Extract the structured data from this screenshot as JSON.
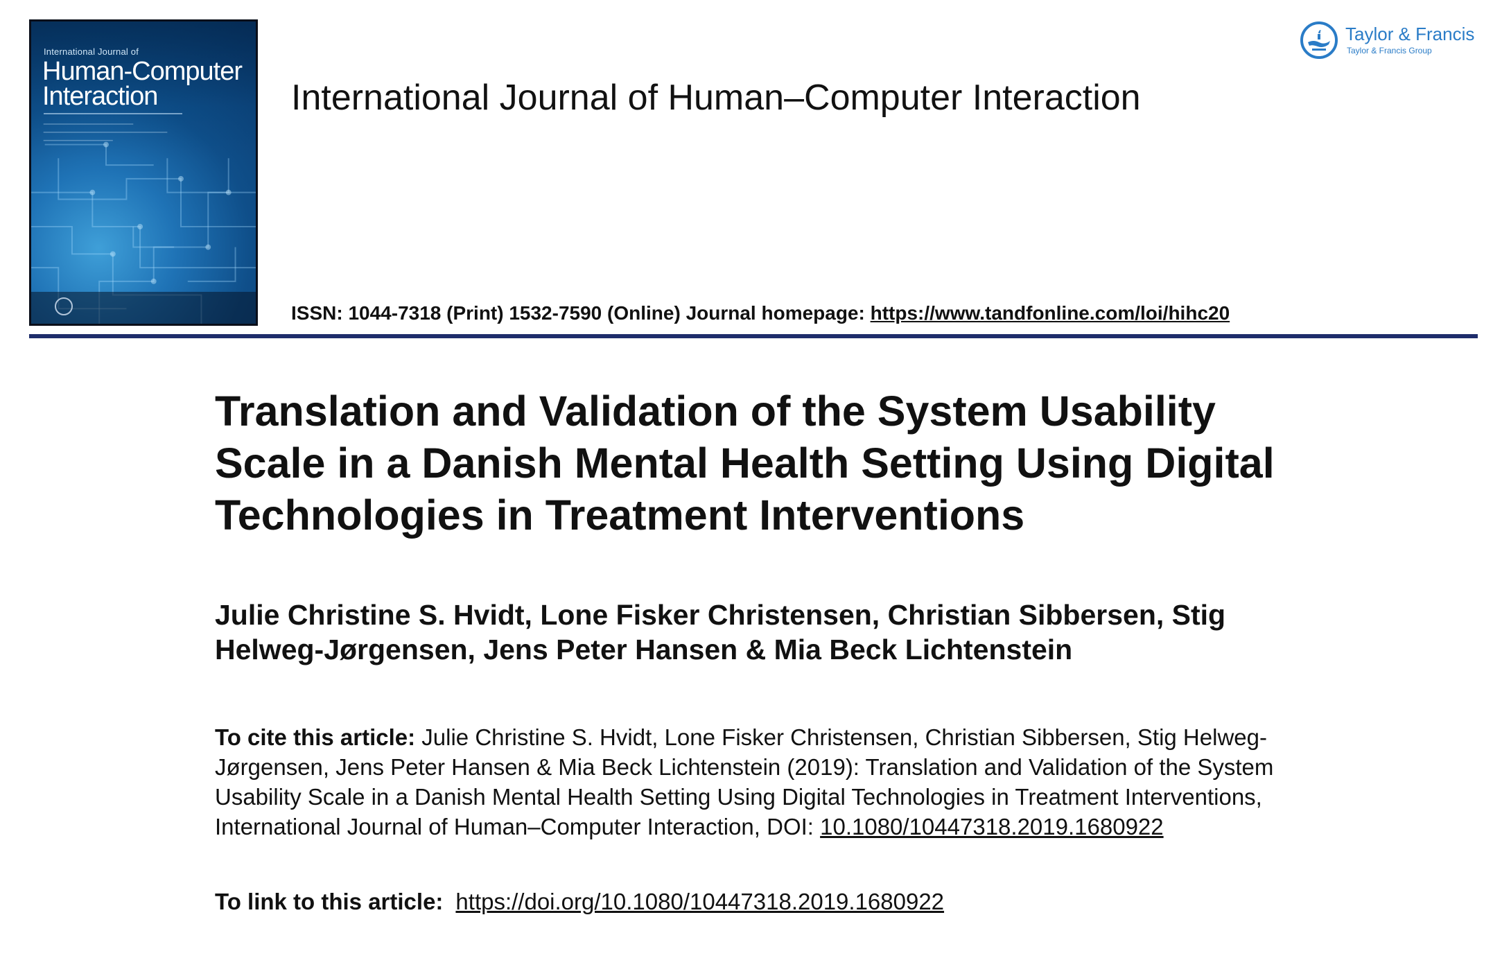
{
  "header": {
    "cover": {
      "kicker": "International Journal of",
      "title": "Human-Computer Interaction"
    },
    "journal_title": "International Journal of Human–Computer Interaction",
    "publisher": {
      "name": "Taylor & Francis",
      "group": "Taylor & Francis Group"
    },
    "issn_text": "ISSN: 1044-7318 (Print) 1532-7590 (Online) Journal homepage: ",
    "homepage_url": "https://www.tandfonline.com/loi/hihc20"
  },
  "article": {
    "title": "Translation and Validation of the System Usability Scale in a Danish Mental Health Setting Using Digital Technologies in Treatment Interventions",
    "authors": "Julie Christine S. Hvidt, Lone Fisker Christensen, Christian Sibbersen, Stig Helweg-Jørgensen, Jens Peter Hansen & Mia Beck Lichtenstein",
    "cite_label": "To cite this article:",
    "cite_text": " Julie Christine S. Hvidt, Lone Fisker Christensen, Christian Sibbersen, Stig Helweg-Jørgensen, Jens Peter Hansen & Mia Beck Lichtenstein (2019): Translation and Validation of the System Usability Scale in a Danish Mental Health Setting Using Digital Technologies in Treatment Interventions, International Journal of Human–Computer Interaction, DOI: ",
    "doi": "10.1080/10447318.2019.1680922",
    "link_label": "To link to this article:",
    "link_url": "https://doi.org/10.1080/10447318.2019.1680922"
  },
  "colors": {
    "rule": "#1e2d6b",
    "publisher_blue": "#2a7cc7",
    "cover_blue": "#1f73b6"
  }
}
